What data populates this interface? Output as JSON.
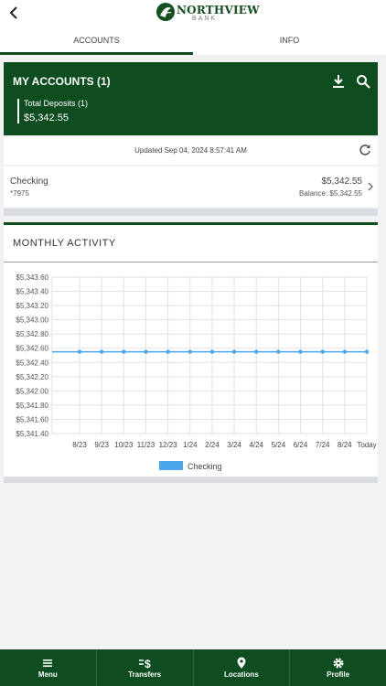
{
  "header": {
    "logo_name": "NORTHVIEW",
    "logo_sub": "BANK"
  },
  "tabs": [
    {
      "label": "ACCOUNTS",
      "active": true
    },
    {
      "label": "INFO",
      "active": false
    }
  ],
  "accounts": {
    "title": "MY ACCOUNTS (1)",
    "total_label": "Total Deposits (1)",
    "total_value": "$5,342.55",
    "icons": [
      "download-icon",
      "search-icon"
    ]
  },
  "updated": {
    "prefix": "Updated ",
    "timestamp": "Sep 04, 2024 8:57:41 AM"
  },
  "account_row": {
    "name": "Checking",
    "number": "*7975",
    "amount": "$5,342.55",
    "balance": "Balance: $5,342.55"
  },
  "activity": {
    "title": "MONTHLY ACTIVITY"
  },
  "chart_data": {
    "type": "line",
    "title": "",
    "x": [
      "8/23",
      "9/23",
      "10/23",
      "11/23",
      "12/23",
      "1/24",
      "2/24",
      "3/24",
      "4/24",
      "5/24",
      "6/24",
      "7/24",
      "8/24",
      "Today"
    ],
    "series": [
      {
        "name": "Checking",
        "color": "#4aa8ea",
        "values": [
          5342.55,
          5342.55,
          5342.55,
          5342.55,
          5342.55,
          5342.55,
          5342.55,
          5342.55,
          5342.55,
          5342.55,
          5342.55,
          5342.55,
          5342.55,
          5342.55
        ]
      }
    ],
    "yticks": [
      "$5,343.60",
      "$5,343.40",
      "$5,343.20",
      "$5,343.00",
      "$5,342.80",
      "$5,342.60",
      "$5,342.40",
      "$5,342.20",
      "$5,342.00",
      "$5,341.80",
      "$5,341.60",
      "$5,341.40"
    ],
    "ylim": [
      5341.4,
      5343.6
    ],
    "grid": true,
    "legend": "bottom"
  },
  "bottom_nav": [
    {
      "label": "Menu",
      "icon": "menu-icon"
    },
    {
      "label": "Transfers",
      "icon": "transfer-dollar-icon"
    },
    {
      "label": "Locations",
      "icon": "location-pin-icon"
    },
    {
      "label": "Profile",
      "icon": "gear-icon"
    }
  ]
}
